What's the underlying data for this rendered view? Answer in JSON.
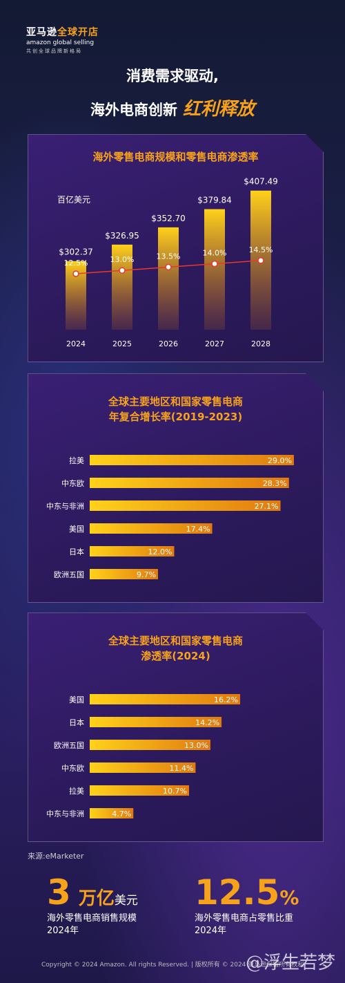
{
  "logo": {
    "line1_a": "亚马逊",
    "line1_b": "全球开店",
    "line2": "amazon global selling",
    "line3": "共创全球品牌新格局"
  },
  "headline": {
    "line1": "消费需求驱动,",
    "line2_a": "海外电商创新",
    "line2_b": "红利释放"
  },
  "colors": {
    "accent": "#f7a21b",
    "bar_top": "#ffd21a",
    "bar_bottom": "#e07a10",
    "line": "#e8392a"
  },
  "chart_data": [
    {
      "type": "bar",
      "title": "海外零售电商规模和零售电商渗透率",
      "unit_label": "百亿美元",
      "categories": [
        "2024",
        "2025",
        "2026",
        "2027",
        "2028"
      ],
      "series": [
        {
          "name": "",
          "type": "bar",
          "values": [
            302.37,
            326.95,
            352.7,
            379.84,
            407.49
          ],
          "labels": [
            "$302.37",
            "$326.95",
            "$352.70",
            "$379.84",
            "$407.49"
          ]
        },
        {
          "name": "",
          "type": "line",
          "values": [
            12.5,
            13.0,
            13.5,
            14.0,
            14.5
          ],
          "labels": [
            "12.5%",
            "13.0%",
            "13.5%",
            "14.0%",
            "14.5%"
          ]
        }
      ]
    },
    {
      "type": "bar",
      "orientation": "horizontal",
      "title": "全球主要地区和国家零售电商",
      "subtitle": "年复合增长率(2019-2023)",
      "categories": [
        "拉美",
        "中东欧",
        "中东与非洲",
        "美国",
        "日本",
        "欧洲五国"
      ],
      "values": [
        29.0,
        28.3,
        27.1,
        17.4,
        12.0,
        9.7
      ],
      "labels": [
        "29.0%",
        "28.3%",
        "27.1%",
        "17.4%",
        "12.0%",
        "9.7%"
      ]
    },
    {
      "type": "bar",
      "orientation": "horizontal",
      "title": "全球主要地区和国家零售电商",
      "subtitle": "渗透率(2024)",
      "categories": [
        "美国",
        "日本",
        "欧洲五国",
        "中东欧",
        "拉美",
        "中东与非洲"
      ],
      "values": [
        16.2,
        14.2,
        13.0,
        11.4,
        10.7,
        4.7
      ],
      "labels": [
        "16.2%",
        "14.2%",
        "13.0%",
        "11.4%",
        "10.7%",
        "4.7%"
      ]
    }
  ],
  "source": "来源:eMarketer",
  "stats": [
    {
      "value": "3",
      "unit_a": "万亿",
      "unit_b": "美元",
      "desc1": "海外零售电商销售规模",
      "desc2": "2024年"
    },
    {
      "value": "12.5",
      "unit_a": "%",
      "desc1": "海外零售电商占零售比重",
      "desc2": "2024年"
    }
  ],
  "footer": "Copyright © 2024 Amazon. All rights Reserved. | 版权所有 © 2024 亚马逊保留所有权利",
  "watermark": "@浮生若梦"
}
